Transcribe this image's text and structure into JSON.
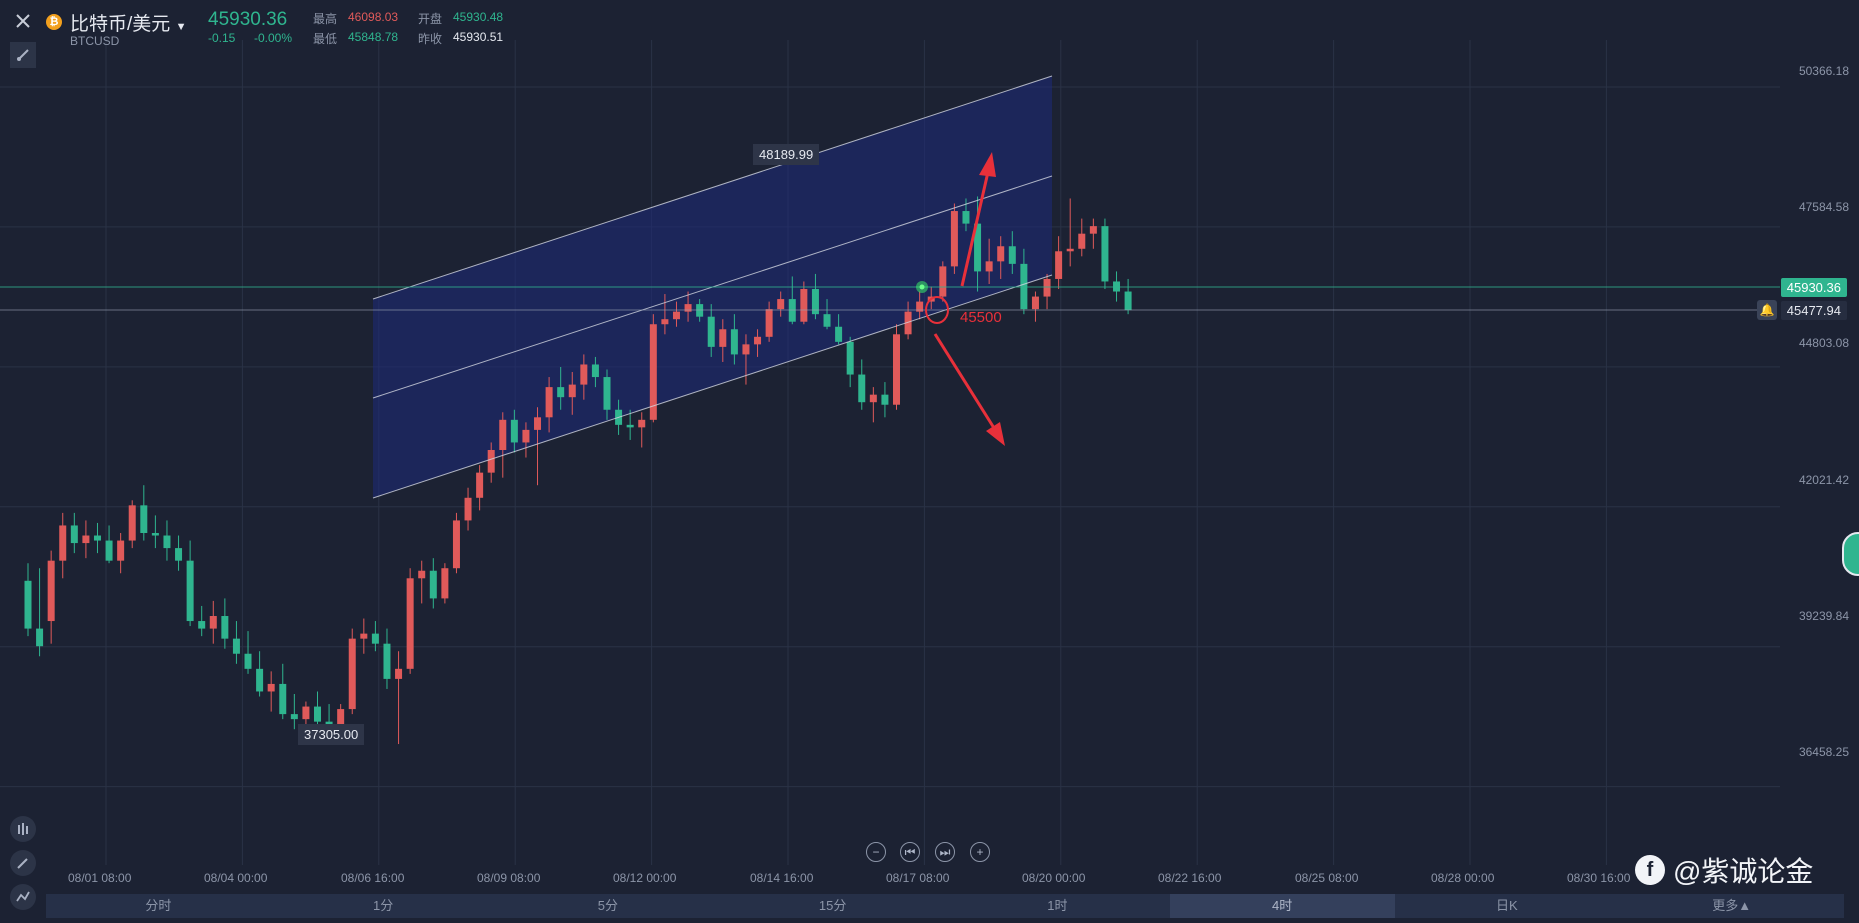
{
  "header": {
    "title": "比特币/美元",
    "symbol": "BTCUSD",
    "last_price": "45930.36",
    "change": "-0.15",
    "change_pct": "-0.00%",
    "high_label": "最高",
    "high_value": "46098.03",
    "low_label": "最低",
    "low_value": "45848.78",
    "open_label": "开盘",
    "open_value": "45930.48",
    "prev_close_label": "昨收",
    "prev_close_value": "45930.51"
  },
  "price_axis": {
    "ticks": [
      "50366.18",
      "47584.58",
      "44803.08",
      "42021.42",
      "39239.84",
      "36458.25"
    ],
    "current_price_tag": "45930.36",
    "alert_price_tag": "45477.94"
  },
  "time_axis": {
    "ticks": [
      "08/01 08:00",
      "08/04 00:00",
      "08/06 16:00",
      "08/09 08:00",
      "08/12 00:00",
      "08/14 16:00",
      "08/17 08:00",
      "08/20 00:00",
      "08/22 16:00",
      "08/25 08:00",
      "08/28 00:00",
      "08/30 16:00"
    ]
  },
  "annotations": {
    "high_marker": "48189.99",
    "low_marker": "37305.00",
    "target_level": "45500"
  },
  "timeframes": [
    "分时",
    "1分",
    "5分",
    "15分",
    "1时",
    "4时",
    "日K",
    "更多▲"
  ],
  "active_timeframe_index": 5,
  "watermark": "@紫诚论金",
  "colors": {
    "up": "#e05a5a",
    "down": "#2fb58f",
    "channel_fill": "#1e2a7a",
    "annotation": "#e8303a",
    "current_price": "#2fb58f"
  },
  "chart_data": {
    "type": "candlestick",
    "ylim": [
      35000,
      51300
    ],
    "candles": [
      [
        0,
        40550,
        40900,
        39450,
        39600
      ],
      [
        1,
        39600,
        40800,
        39050,
        39250
      ],
      [
        2,
        39750,
        41150,
        39300,
        40950
      ],
      [
        3,
        40950,
        41900,
        40600,
        41650
      ],
      [
        4,
        41650,
        41900,
        41100,
        41300
      ],
      [
        5,
        41300,
        41750,
        41000,
        41450
      ],
      [
        6,
        41450,
        41700,
        41100,
        41350
      ],
      [
        7,
        41350,
        41650,
        40900,
        40950
      ],
      [
        8,
        40950,
        41500,
        40700,
        41350
      ],
      [
        9,
        41350,
        42150,
        41200,
        42050
      ],
      [
        10,
        42050,
        42450,
        41350,
        41500
      ],
      [
        11,
        41500,
        41850,
        41200,
        41450
      ],
      [
        12,
        41450,
        41750,
        40950,
        41200
      ],
      [
        13,
        41200,
        41450,
        40750,
        40950
      ],
      [
        14,
        40950,
        41350,
        39650,
        39750
      ],
      [
        15,
        39750,
        40050,
        39450,
        39600
      ],
      [
        16,
        39600,
        40150,
        39300,
        39850
      ],
      [
        17,
        39850,
        40200,
        39200,
        39400
      ],
      [
        18,
        39400,
        39750,
        38900,
        39100
      ],
      [
        19,
        39100,
        39550,
        38700,
        38800
      ],
      [
        20,
        38800,
        39150,
        38250,
        38350
      ],
      [
        21,
        38350,
        38750,
        37950,
        38500
      ],
      [
        22,
        38500,
        38900,
        37800,
        37900
      ],
      [
        23,
        37900,
        38300,
        37600,
        37800
      ],
      [
        24,
        37800,
        38150,
        37500,
        38050
      ],
      [
        25,
        38050,
        38350,
        37600,
        37750
      ],
      [
        26,
        37750,
        38100,
        37450,
        37650
      ],
      [
        27,
        37650,
        38100,
        37500,
        38000
      ],
      [
        28,
        38000,
        39600,
        37900,
        39400
      ],
      [
        29,
        39400,
        39800,
        39100,
        39500
      ],
      [
        30,
        39500,
        39750,
        39150,
        39300
      ],
      [
        31,
        39300,
        39600,
        38400,
        38600
      ],
      [
        32,
        38600,
        39150,
        37305,
        38800
      ],
      [
        33,
        38800,
        40800,
        38700,
        40600
      ],
      [
        34,
        40600,
        40950,
        40100,
        40750
      ],
      [
        35,
        40750,
        41000,
        40000,
        40200
      ],
      [
        36,
        40200,
        40900,
        40100,
        40800
      ],
      [
        37,
        40800,
        41900,
        40700,
        41750
      ],
      [
        38,
        41750,
        42400,
        41550,
        42200
      ],
      [
        39,
        42200,
        42850,
        41950,
        42700
      ],
      [
        40,
        42700,
        43300,
        42500,
        43150
      ],
      [
        41,
        43150,
        43900,
        42600,
        43750
      ],
      [
        42,
        43750,
        43950,
        43100,
        43300
      ],
      [
        43,
        43300,
        43700,
        43000,
        43550
      ],
      [
        44,
        43550,
        44000,
        42450,
        43800
      ],
      [
        45,
        43800,
        44600,
        43500,
        44400
      ],
      [
        46,
        44400,
        44800,
        43950,
        44200
      ],
      [
        47,
        44200,
        44700,
        43850,
        44450
      ],
      [
        48,
        44450,
        45050,
        44150,
        44850
      ],
      [
        49,
        44850,
        45000,
        44400,
        44600
      ],
      [
        50,
        44600,
        44750,
        43750,
        43950
      ],
      [
        51,
        43950,
        44150,
        43450,
        43650
      ],
      [
        52,
        43650,
        43950,
        43350,
        43600
      ],
      [
        53,
        43600,
        43900,
        43200,
        43750
      ],
      [
        54,
        43750,
        45850,
        43700,
        45650
      ],
      [
        55,
        45650,
        46250,
        45450,
        45750
      ],
      [
        56,
        45750,
        46100,
        45600,
        45900
      ],
      [
        57,
        45900,
        46300,
        45700,
        46050
      ],
      [
        58,
        46050,
        46150,
        45700,
        45800
      ],
      [
        59,
        45800,
        46050,
        45000,
        45200
      ],
      [
        60,
        45200,
        45750,
        44900,
        45550
      ],
      [
        61,
        45550,
        45850,
        44850,
        45050
      ],
      [
        62,
        45050,
        45450,
        44450,
        45250
      ],
      [
        63,
        45250,
        45550,
        45000,
        45400
      ],
      [
        64,
        45400,
        46100,
        45300,
        45950
      ],
      [
        65,
        45950,
        46300,
        45800,
        46150
      ],
      [
        66,
        46150,
        46600,
        45650,
        45700
      ],
      [
        67,
        45700,
        46500,
        45650,
        46350
      ],
      [
        68,
        46350,
        46650,
        45750,
        45850
      ],
      [
        69,
        45850,
        46150,
        45550,
        45600
      ],
      [
        70,
        45600,
        45850,
        45250,
        45300
      ],
      [
        71,
        45300,
        45400,
        44400,
        44650
      ],
      [
        72,
        44650,
        44950,
        43950,
        44100
      ],
      [
        73,
        44100,
        44400,
        43700,
        44250
      ],
      [
        74,
        44250,
        44500,
        43800,
        44050
      ],
      [
        75,
        44050,
        45650,
        43950,
        45450
      ],
      [
        76,
        45450,
        46100,
        45350,
        45900
      ],
      [
        77,
        45900,
        46300,
        45750,
        46100
      ],
      [
        78,
        46100,
        46400,
        45950,
        46200
      ],
      [
        79,
        46200,
        46900,
        46100,
        46800
      ],
      [
        80,
        46800,
        48050,
        46650,
        47900
      ],
      [
        81,
        47900,
        48150,
        47500,
        47650
      ],
      [
        82,
        47650,
        48189.99,
        46300,
        46700
      ],
      [
        83,
        46700,
        47350,
        46450,
        46900
      ],
      [
        84,
        46900,
        47400,
        46550,
        47200
      ],
      [
        85,
        47200,
        47500,
        46650,
        46850
      ],
      [
        86,
        46850,
        47150,
        45850,
        45950
      ],
      [
        87,
        45950,
        46300,
        45700,
        46200
      ],
      [
        88,
        46200,
        46650,
        45950,
        46550
      ],
      [
        89,
        46550,
        47400,
        46350,
        47100
      ],
      [
        90,
        47100,
        48150,
        46800,
        47150
      ],
      [
        91,
        47150,
        47750,
        47000,
        47450
      ],
      [
        92,
        47450,
        47750,
        47150,
        47600
      ],
      [
        93,
        47600,
        47750,
        46350,
        46500
      ],
      [
        94,
        46500,
        46700,
        46100,
        46300
      ],
      [
        95,
        46300,
        46550,
        45850,
        45930.36
      ]
    ]
  }
}
